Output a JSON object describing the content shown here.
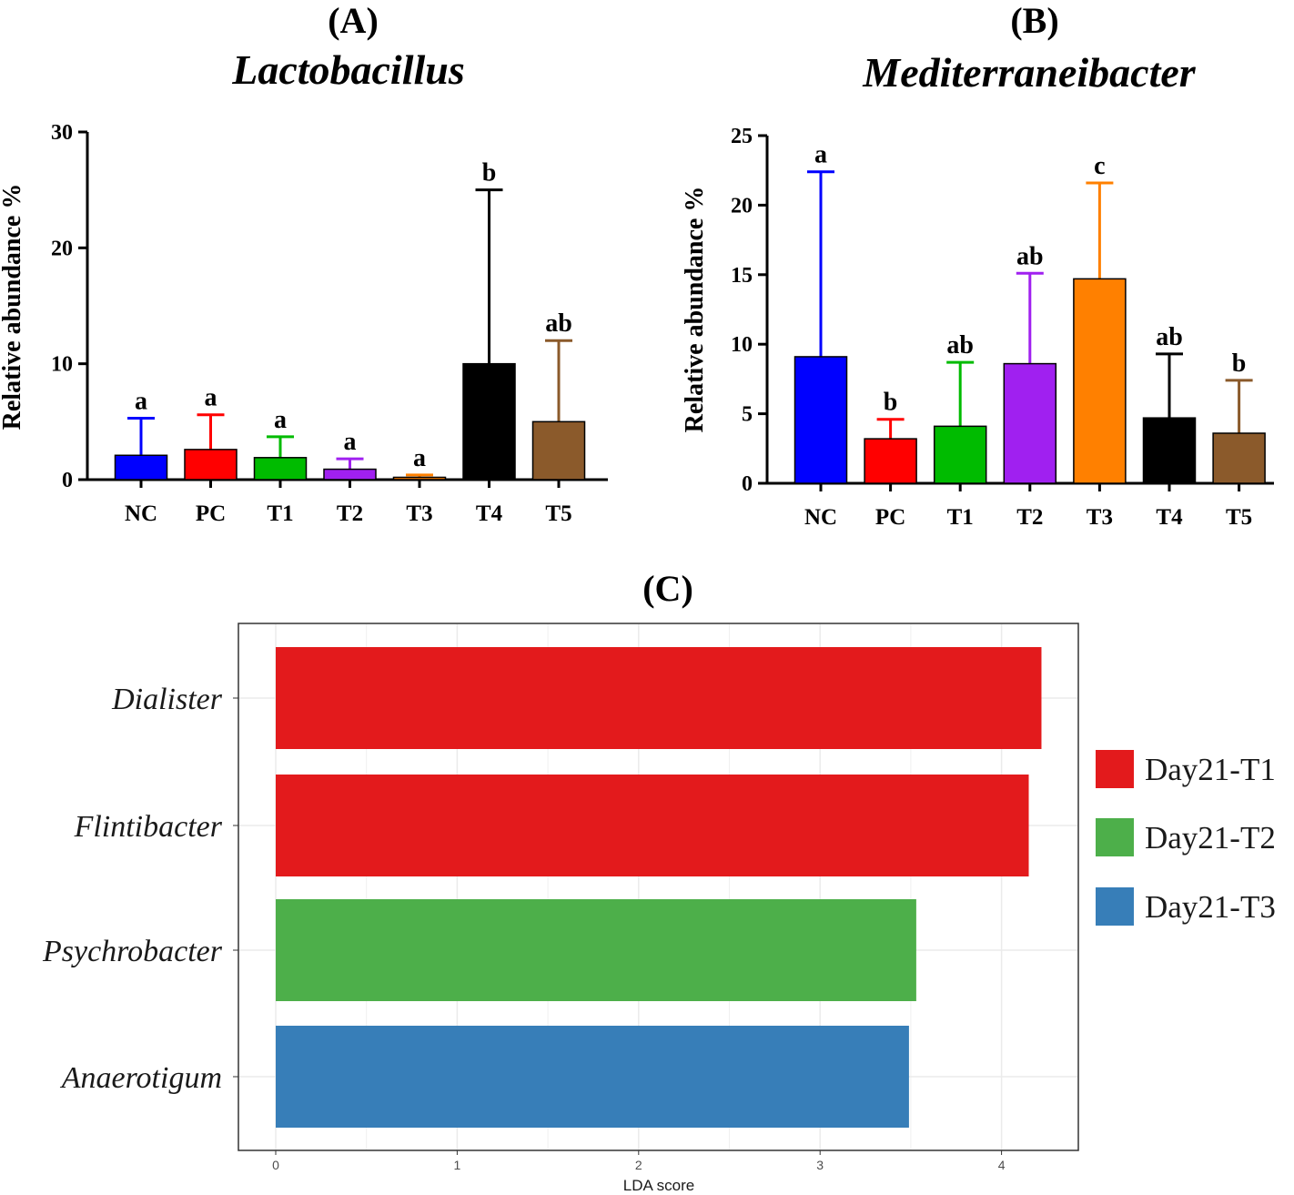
{
  "chart_data": [
    {
      "panel": "(A)",
      "type": "bar",
      "title": "Lactobacillus",
      "ylabel": "Relative abundance %",
      "xlabel": "",
      "ylim": [
        0,
        30
      ],
      "yticks": [
        0,
        10,
        20,
        30
      ],
      "categories": [
        "NC",
        "PC",
        "T1",
        "T2",
        "T3",
        "T4",
        "T5"
      ],
      "values": [
        2.1,
        2.6,
        1.9,
        0.9,
        0.2,
        10.0,
        5.0
      ],
      "errors": [
        3.2,
        3.0,
        1.8,
        0.9,
        0.2,
        15.0,
        7.0
      ],
      "colors": [
        "#0000ff",
        "#ff0000",
        "#00bb00",
        "#a020f0",
        "#ff8000",
        "#000000",
        "#8b5a2b"
      ],
      "significance": [
        "a",
        "a",
        "a",
        "a",
        "a",
        "b",
        "ab"
      ]
    },
    {
      "panel": "(B)",
      "type": "bar",
      "title": "Mediterraneibacter",
      "ylabel": "Relative abundance %",
      "xlabel": "",
      "ylim": [
        0,
        25
      ],
      "yticks": [
        0,
        5,
        10,
        15,
        20,
        25
      ],
      "categories": [
        "NC",
        "PC",
        "T1",
        "T2",
        "T3",
        "T4",
        "T5"
      ],
      "values": [
        9.1,
        3.2,
        4.1,
        8.6,
        14.7,
        4.7,
        3.6
      ],
      "errors": [
        13.3,
        1.4,
        4.6,
        6.5,
        6.9,
        4.6,
        3.8
      ],
      "colors": [
        "#0000ff",
        "#ff0000",
        "#00bb00",
        "#a020f0",
        "#ff8000",
        "#000000",
        "#8b5a2b"
      ],
      "significance": [
        "a",
        "b",
        "ab",
        "ab",
        "c",
        "ab",
        "b"
      ]
    },
    {
      "panel": "(C)",
      "type": "bar",
      "orientation": "horizontal",
      "title": "",
      "xlabel": "LDA score",
      "xlim": [
        0,
        4.4
      ],
      "xticks": [
        0,
        1,
        2,
        3,
        4
      ],
      "features": [
        "Dialister",
        "Flintibacter",
        "Psychrobacter",
        "Anaerotigum"
      ],
      "values": [
        4.22,
        4.15,
        3.53,
        3.49
      ],
      "groups": [
        "Day21-T1",
        "Day21-T1",
        "Day21-T2",
        "Day21-T3"
      ],
      "legend": [
        {
          "label": "Day21-T1",
          "color": "#e31a1c"
        },
        {
          "label": "Day21-T2",
          "color": "#4daf4a"
        },
        {
          "label": "Day21-T3",
          "color": "#377eb8"
        }
      ],
      "legend_position": "right"
    }
  ]
}
